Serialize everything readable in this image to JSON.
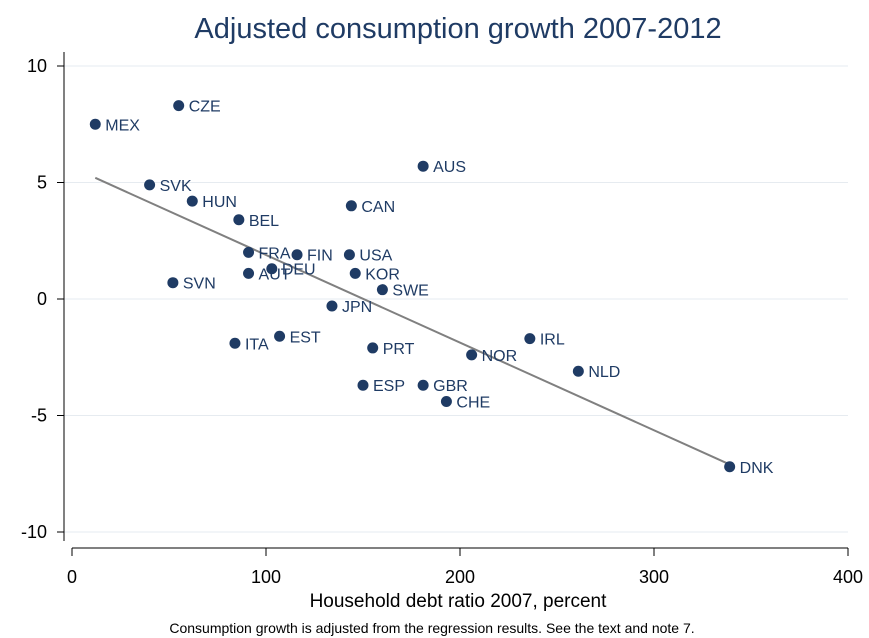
{
  "chart_data": {
    "type": "scatter",
    "title": "Adjusted consumption growth 2007-2012",
    "xlabel": "Household debt ratio 2007, percent",
    "ylabel": "",
    "note": "Consumption growth is adjusted from the regression results. See the text and note 7.",
    "xlim": [
      0,
      400
    ],
    "ylim": [
      -10,
      10
    ],
    "xticks": [
      0,
      100,
      200,
      300,
      400
    ],
    "yticks": [
      10,
      5,
      0,
      -5,
      -10
    ],
    "grid": true,
    "colors": {
      "points": "#1f3b64",
      "fit_line": "#808080",
      "title": "#1f3b64"
    },
    "points": [
      {
        "label": "MEX",
        "x": 12,
        "y": 7.5
      },
      {
        "label": "CZE",
        "x": 55,
        "y": 8.3
      },
      {
        "label": "AUS",
        "x": 181,
        "y": 5.7
      },
      {
        "label": "SVK",
        "x": 40,
        "y": 4.9
      },
      {
        "label": "HUN",
        "x": 62,
        "y": 4.2
      },
      {
        "label": "BEL",
        "x": 86,
        "y": 3.4
      },
      {
        "label": "CAN",
        "x": 144,
        "y": 4.0
      },
      {
        "label": "FRA",
        "x": 91,
        "y": 2.0
      },
      {
        "label": "FIN",
        "x": 116,
        "y": 1.9
      },
      {
        "label": "USA",
        "x": 143,
        "y": 1.9
      },
      {
        "label": "DEU",
        "x": 103,
        "y": 1.3
      },
      {
        "label": "AUT",
        "x": 91,
        "y": 1.1
      },
      {
        "label": "KOR",
        "x": 146,
        "y": 1.1
      },
      {
        "label": "SVN",
        "x": 52,
        "y": 0.7
      },
      {
        "label": "SWE",
        "x": 160,
        "y": 0.4
      },
      {
        "label": "JPN",
        "x": 134,
        "y": -0.3
      },
      {
        "label": "EST",
        "x": 107,
        "y": -1.6
      },
      {
        "label": "ITA",
        "x": 84,
        "y": -1.9
      },
      {
        "label": "PRT",
        "x": 155,
        "y": -2.1
      },
      {
        "label": "IRL",
        "x": 236,
        "y": -1.7
      },
      {
        "label": "NOR",
        "x": 206,
        "y": -2.4
      },
      {
        "label": "NLD",
        "x": 261,
        "y": -3.1
      },
      {
        "label": "ESP",
        "x": 150,
        "y": -3.7
      },
      {
        "label": "GBR",
        "x": 181,
        "y": -3.7
      },
      {
        "label": "CHE",
        "x": 193,
        "y": -4.4
      },
      {
        "label": "DNK",
        "x": 339,
        "y": -7.2
      }
    ],
    "fit_line": {
      "x1": 12,
      "y1": 5.2,
      "x2": 339,
      "y2": -7.1
    }
  }
}
